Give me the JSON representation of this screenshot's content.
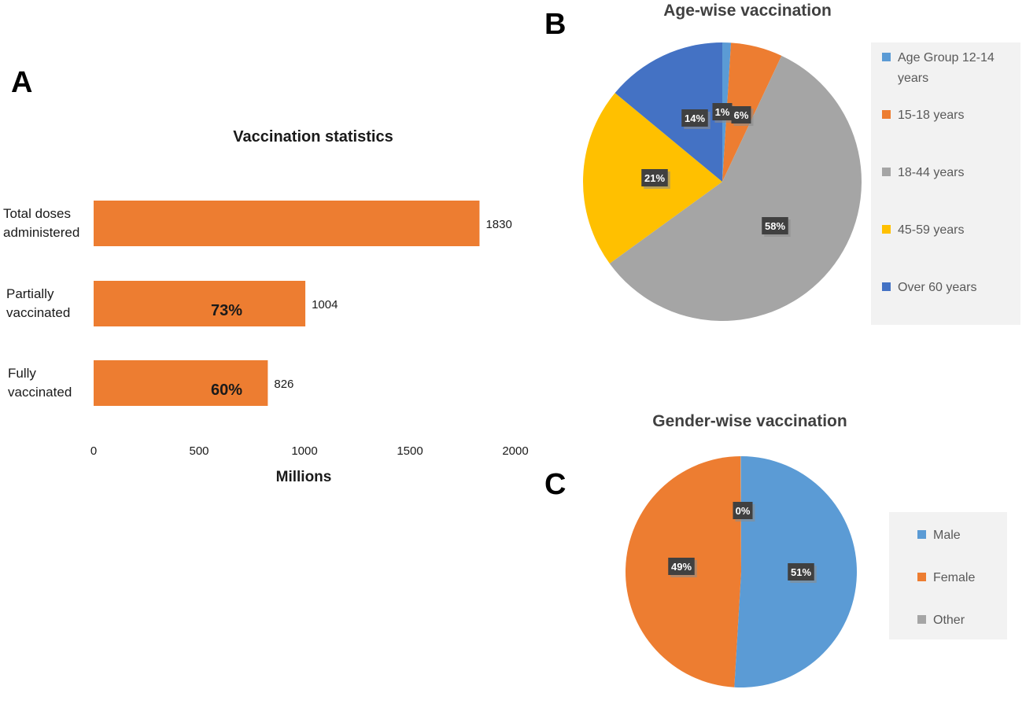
{
  "panels": {
    "a": "A",
    "b": "B",
    "c": "C"
  },
  "colors": {
    "bar": "#ED7D31",
    "age": [
      "#5B9BD5",
      "#ED7D31",
      "#A5A5A5",
      "#FFC000",
      "#4472C4"
    ],
    "gender": [
      "#5B9BD5",
      "#ED7D31",
      "#A5A5A5"
    ],
    "label_bg": "#404040",
    "legend_bg": "#F2F2F2"
  },
  "chart_data": [
    {
      "type": "bar",
      "orientation": "horizontal",
      "title": "Vaccination statistics",
      "xlabel": "Millions",
      "xlim": [
        0,
        2000
      ],
      "xticks": [
        0,
        500,
        1000,
        1500,
        2000
      ],
      "categories": [
        [
          "Total doses",
          "administered"
        ],
        [
          "Partially",
          "vaccinated"
        ],
        [
          "Fully",
          "vaccinated"
        ]
      ],
      "values": [
        1830,
        1004,
        826
      ],
      "inner_labels": [
        "",
        "73%",
        "60%"
      ]
    },
    {
      "type": "pie",
      "title": "Age-wise vaccination",
      "categories": [
        "Age Group 12-14 years",
        "15-18 years",
        "18-44 years",
        "45-59 years",
        "Over 60 years"
      ],
      "legend": [
        [
          "Age Group 12-14",
          "years"
        ],
        [
          "15-18 years"
        ],
        [
          "18-44 years"
        ],
        [
          "45-59 years"
        ],
        [
          "Over 60 years"
        ]
      ],
      "values": [
        1,
        6,
        58,
        21,
        14
      ],
      "labels": [
        "1%",
        "6%",
        "58%",
        "21%",
        "14%"
      ],
      "legend_position": "right"
    },
    {
      "type": "pie",
      "title": "Gender-wise vaccination",
      "categories": [
        "Male",
        "Female",
        "Other"
      ],
      "values": [
        51,
        49,
        0.1
      ],
      "labels": [
        "51%",
        "49%",
        "0%"
      ],
      "legend_position": "right"
    }
  ]
}
